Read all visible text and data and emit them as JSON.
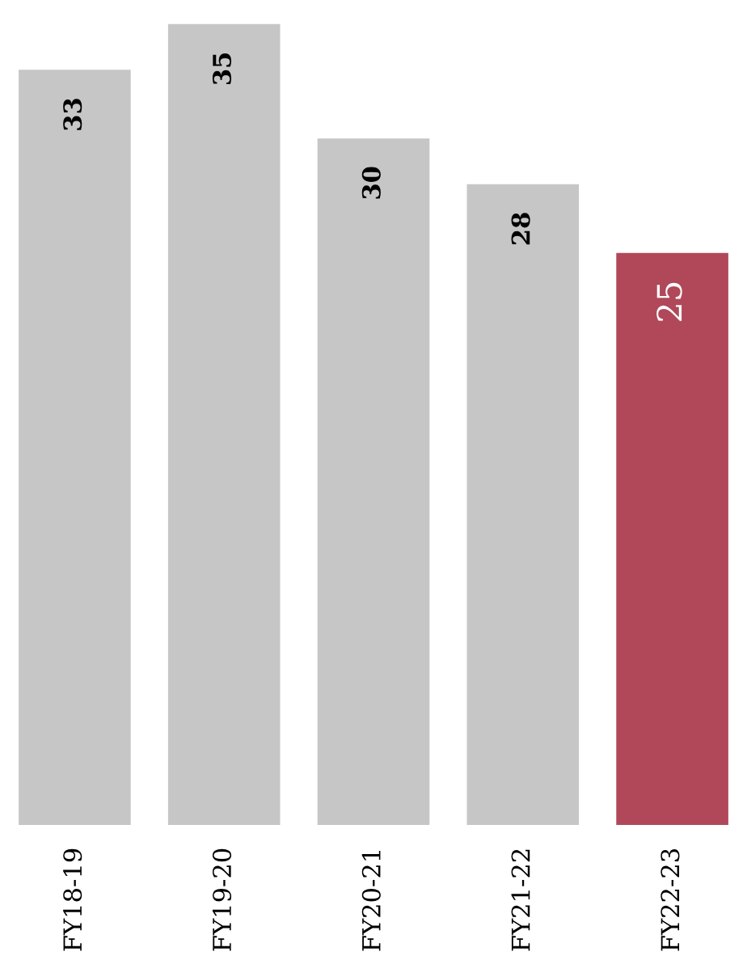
{
  "chart_data": {
    "type": "bar",
    "categories": [
      "FY18-19",
      "FY19-20",
      "FY20-21",
      "FY21-22",
      "FY22-23"
    ],
    "values": [
      33,
      35,
      30,
      28,
      25
    ],
    "colors": [
      "#c6c6c6",
      "#c6c6c6",
      "#c6c6c6",
      "#c6c6c6",
      "#b0485a"
    ],
    "data_labels": true,
    "grid": false,
    "legend": false
  }
}
